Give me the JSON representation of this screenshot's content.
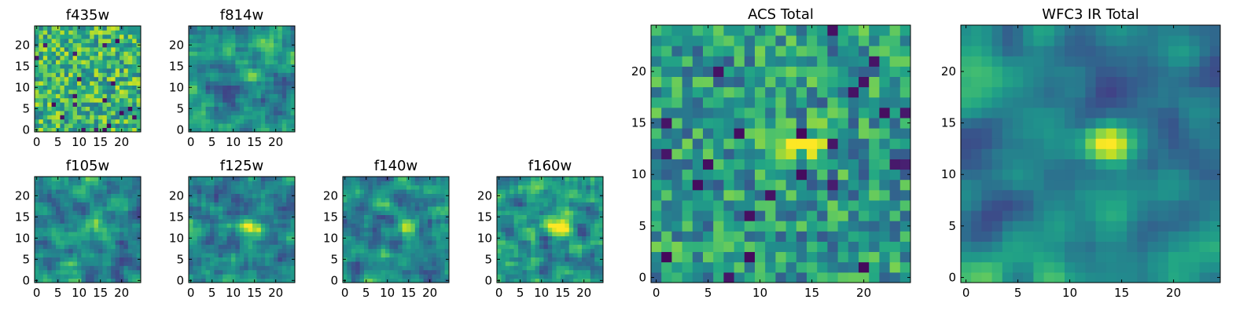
{
  "chart_data": [
    {
      "type": "heatmap",
      "title": "f435w",
      "xticks": [
        "0",
        "5",
        "10",
        "15",
        "20"
      ],
      "yticks": [
        "0",
        "5",
        "10",
        "15",
        "20"
      ],
      "xlim": [
        -0.5,
        24.5
      ],
      "ylim": [
        -0.5,
        24.5
      ],
      "grid_size": [
        25,
        25
      ],
      "colormap": "viridis",
      "source_peak": null
    },
    {
      "type": "heatmap",
      "title": "f814w",
      "xticks": [
        "0",
        "5",
        "10",
        "15",
        "20"
      ],
      "yticks": [
        "0",
        "5",
        "10",
        "15",
        "20"
      ],
      "xlim": [
        -0.5,
        24.5
      ],
      "ylim": [
        -0.5,
        24.5
      ],
      "grid_size": [
        25,
        25
      ],
      "colormap": "viridis",
      "source_peak": [
        14,
        13
      ]
    },
    {
      "type": "heatmap",
      "title": "f105w",
      "xticks": [
        "0",
        "5",
        "10",
        "15",
        "20"
      ],
      "yticks": [
        "0",
        "5",
        "10",
        "15",
        "20"
      ],
      "xlim": [
        -0.5,
        24.5
      ],
      "ylim": [
        -0.5,
        24.5
      ],
      "grid_size": [
        25,
        25
      ],
      "colormap": "viridis",
      "source_peak": [
        14,
        13
      ]
    },
    {
      "type": "heatmap",
      "title": "f125w",
      "xticks": [
        "0",
        "5",
        "10",
        "15",
        "20"
      ],
      "yticks": [
        "0",
        "5",
        "10",
        "15",
        "20"
      ],
      "xlim": [
        -0.5,
        24.5
      ],
      "ylim": [
        -0.5,
        24.5
      ],
      "grid_size": [
        25,
        25
      ],
      "colormap": "viridis",
      "source_peak": [
        14,
        13
      ]
    },
    {
      "type": "heatmap",
      "title": "f140w",
      "xticks": [
        "0",
        "5",
        "10",
        "15",
        "20"
      ],
      "yticks": [
        "0",
        "5",
        "10",
        "15",
        "20"
      ],
      "xlim": [
        -0.5,
        24.5
      ],
      "ylim": [
        -0.5,
        24.5
      ],
      "grid_size": [
        25,
        25
      ],
      "colormap": "viridis",
      "source_peak": [
        15,
        13
      ]
    },
    {
      "type": "heatmap",
      "title": "f160w",
      "xticks": [
        "0",
        "5",
        "10",
        "15",
        "20"
      ],
      "yticks": [
        "0",
        "5",
        "10",
        "15",
        "20"
      ],
      "xlim": [
        -0.5,
        24.5
      ],
      "ylim": [
        -0.5,
        24.5
      ],
      "grid_size": [
        25,
        25
      ],
      "colormap": "viridis",
      "source_peak": [
        14,
        13
      ]
    },
    {
      "type": "heatmap",
      "title": "ACS Total",
      "xticks": [
        "0",
        "5",
        "10",
        "15",
        "20"
      ],
      "yticks": [
        "0",
        "5",
        "10",
        "15",
        "20"
      ],
      "xlim": [
        -0.5,
        24.5
      ],
      "ylim": [
        -0.5,
        24.5
      ],
      "grid_size": [
        25,
        25
      ],
      "colormap": "viridis",
      "source_peak": [
        14,
        13
      ]
    },
    {
      "type": "heatmap",
      "title": "WFC3 IR Total",
      "xticks": [
        "0",
        "5",
        "10",
        "15",
        "20"
      ],
      "yticks": [
        "0",
        "5",
        "10",
        "15",
        "20"
      ],
      "xlim": [
        -0.5,
        24.5
      ],
      "ylim": [
        -0.5,
        24.5
      ],
      "grid_size": [
        25,
        25
      ],
      "colormap": "viridis",
      "source_peak": [
        14,
        13
      ]
    }
  ]
}
